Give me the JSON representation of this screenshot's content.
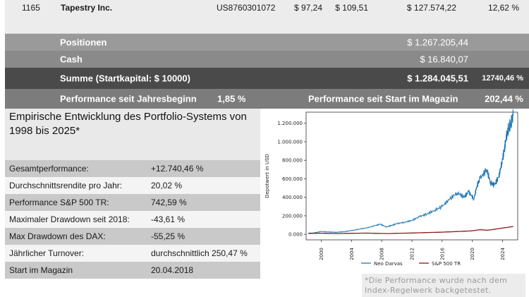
{
  "holding": {
    "number": "1165",
    "name": "Tapestry Inc.",
    "isin": "US8760301072",
    "buy_price": "$ 97,24",
    "current_price": "$ 109,51",
    "value": "$ 127.574,22",
    "performance": "12,62 %"
  },
  "summary": {
    "positions_label": "Positionen",
    "positions_value": "$ 1.267.205,44",
    "cash_label": "Cash",
    "cash_value": "$ 16.840,07",
    "total_label": "Summe (Startkapital: $ 10000)",
    "total_value": "$ 1.284.045,51",
    "total_pct": "12740,46 %",
    "perf_ytd_label": "Performance seit Jahresbeginn",
    "perf_ytd_value": "1,85 %",
    "perf_start_label": "Performance seit Start im Magazin",
    "perf_start_value": "202,44 %"
  },
  "panel": {
    "title": "Empirische Entwicklung des Portfolio-Systems von 1998 bis 2025*",
    "stats": [
      {
        "label": "Gesamtperformance:",
        "value": "+12.740,46 %"
      },
      {
        "label": "Durchschnittsrendite pro Jahr:",
        "value": "20,02 %"
      },
      {
        "label": "Performance S&P 500 TR:",
        "value": "742,59 %"
      },
      {
        "label": "Maximaler Drawdown seit 2018:",
        "value": "-43,61 %"
      },
      {
        "label": "Max Drawdown des DAX:",
        "value": "-55,25 %"
      },
      {
        "label": "Jährlicher Turnover:",
        "value": "durchschnittlich 250,47 %"
      },
      {
        "label": "Start im Magazin",
        "value": "20.04.2018"
      }
    ]
  },
  "chart_data": {
    "type": "line",
    "ylabel": "Depotwert in USD",
    "xlabel": "",
    "xlim": [
      1998,
      2026
    ],
    "ylim": [
      -60000,
      1320000
    ],
    "x_ticks": [
      2000,
      2004,
      2008,
      2012,
      2016,
      2020,
      2024
    ],
    "y_ticks": [
      0,
      200000,
      400000,
      600000,
      800000,
      1000000,
      1200000
    ],
    "y_tick_labels": [
      "0.000",
      "200.000",
      "400.000",
      "600.000",
      "800.000",
      "1.000.000",
      "1.200.000"
    ],
    "grid": false,
    "legend": "bottom",
    "series": [
      {
        "name": "Neo Darvas",
        "color": "#1f77b4",
        "x": [
          1998.3,
          1999,
          2000,
          2001,
          2002,
          2003,
          2004,
          2005,
          2006,
          2007,
          2007.8,
          2008.6,
          2009.3,
          2010,
          2011,
          2012,
          2013,
          2014,
          2015,
          2016,
          2017,
          2018,
          2018.9,
          2019.5,
          2020.2,
          2020.6,
          2021,
          2021.9,
          2022.4,
          2022.9,
          2023.5,
          2023.9,
          2024.2,
          2024.5,
          2024.8,
          2025.1,
          2025.4
        ],
        "values": [
          10000,
          15000,
          30000,
          25000,
          22000,
          28000,
          40000,
          55000,
          70000,
          90000,
          110000,
          80000,
          95000,
          115000,
          130000,
          150000,
          190000,
          220000,
          260000,
          300000,
          380000,
          450000,
          400000,
          460000,
          380000,
          520000,
          600000,
          700000,
          560000,
          530000,
          620000,
          780000,
          900000,
          1050000,
          1150000,
          1200000,
          1284000
        ]
      },
      {
        "name": "S&P 500 TR",
        "color": "#8b1a1a",
        "x": [
          1998.3,
          2000,
          2002,
          2004,
          2006,
          2008,
          2009,
          2010,
          2012,
          2014,
          2016,
          2018,
          2020,
          2021,
          2022,
          2023,
          2024,
          2025.4
        ],
        "values": [
          10000,
          12000,
          8000,
          11000,
          13000,
          9000,
          8000,
          11000,
          14000,
          19000,
          23000,
          30000,
          38000,
          50000,
          44000,
          55000,
          68000,
          84000
        ]
      }
    ]
  },
  "footnote": "*Die Performance wurde nach dem Index-Regelwerk backgetestet."
}
